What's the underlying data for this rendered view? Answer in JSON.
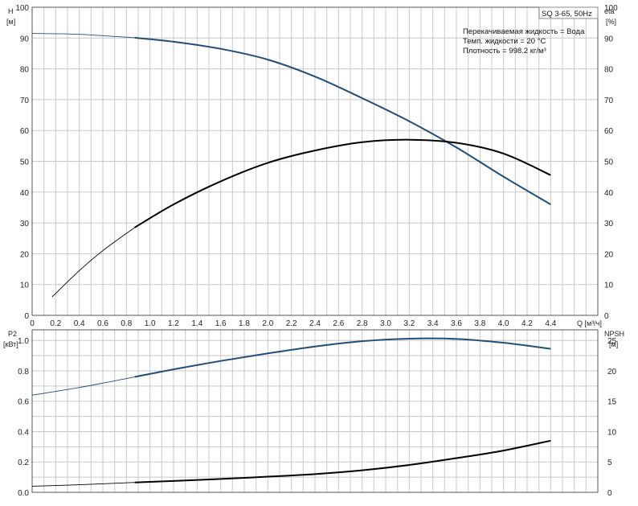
{
  "title_box": "SQ 3-65, 50Hz",
  "info_lines": [
    "Перекачиваемая жидкость = Вода",
    "Темп. жидкости = 20 °C",
    "Плотность = 998.2 кг/м³"
  ],
  "colors": {
    "blue": "#1f4e79",
    "black": "#000000",
    "grid": "#c8c8c8"
  },
  "chart_data": [
    {
      "type": "line",
      "name": "top",
      "xlabel": "Q [м³/ч]",
      "ylabel_left": "H",
      "ylabel_left_unit": "[м]",
      "ylabel_right": "eta",
      "ylabel_right_unit": "[%]",
      "xlim": [
        0,
        4.8
      ],
      "ylim": [
        0,
        100
      ],
      "x_ticks": [
        "0",
        "0.2",
        "0.4",
        "0.6",
        "0.8",
        "1.0",
        "1.2",
        "1.4",
        "1.6",
        "1.8",
        "2.0",
        "2.2",
        "2.4",
        "2.6",
        "2.8",
        "3.0",
        "3.2",
        "3.4",
        "3.6",
        "3.8",
        "4.0",
        "4.2",
        "4.4"
      ],
      "y_ticks": [
        "0",
        "10",
        "20",
        "30",
        "40",
        "50",
        "60",
        "70",
        "80",
        "90",
        "100"
      ],
      "grid": true,
      "series": [
        {
          "color": "blue",
          "axis": "left",
          "x": [
            0,
            0.4,
            0.87,
            1.2,
            1.6,
            2.0,
            2.4,
            2.8,
            3.2,
            3.6,
            4.0,
            4.4
          ],
          "y": [
            91.5,
            91.2,
            90.1,
            88.8,
            86.5,
            83.0,
            77.5,
            70.5,
            63.0,
            54.5,
            45.0,
            36.0
          ],
          "thin_until_x": 0.87
        },
        {
          "color": "black",
          "axis": "right",
          "x": [
            0.17,
            0.4,
            0.6,
            0.87,
            1.2,
            1.6,
            2.0,
            2.4,
            2.8,
            3.2,
            3.6,
            4.0,
            4.4
          ],
          "y": [
            6.0,
            14.5,
            21.0,
            28.5,
            36.0,
            43.5,
            49.5,
            53.5,
            56.2,
            57.0,
            56.0,
            52.5,
            45.5
          ],
          "thin_until_x": 0.87
        }
      ]
    },
    {
      "type": "line",
      "name": "bottom",
      "ylabel_left": "P2",
      "ylabel_left_unit": "[кВт]",
      "ylabel_right": "NPSH",
      "ylabel_right_unit": "[м]",
      "xlim": [
        0,
        4.8
      ],
      "ylim": [
        0,
        1.07
      ],
      "y_ticks": [
        "0.0",
        "0.2",
        "0.4",
        "0.6",
        "0.8",
        "1.0"
      ],
      "y2_ticks": [
        "0",
        "5",
        "10",
        "15",
        "20",
        "25"
      ],
      "y2lim": [
        0,
        26.75
      ],
      "grid": true,
      "series": [
        {
          "color": "blue",
          "axis": "left",
          "x": [
            0,
            0.4,
            0.87,
            1.2,
            1.6,
            2.0,
            2.4,
            2.8,
            3.2,
            3.6,
            4.0,
            4.4
          ],
          "y": [
            0.64,
            0.69,
            0.76,
            0.81,
            0.865,
            0.915,
            0.96,
            0.995,
            1.012,
            1.01,
            0.985,
            0.945
          ],
          "thin_until_x": 0.87
        },
        {
          "color": "black",
          "axis": "left",
          "x": [
            0,
            0.4,
            0.87,
            1.2,
            1.6,
            2.0,
            2.4,
            2.8,
            3.2,
            3.6,
            4.0,
            4.4
          ],
          "y": [
            0.04,
            0.05,
            0.065,
            0.075,
            0.088,
            0.103,
            0.12,
            0.145,
            0.18,
            0.225,
            0.275,
            0.34
          ],
          "thin_until_x": 0.87
        }
      ]
    }
  ]
}
